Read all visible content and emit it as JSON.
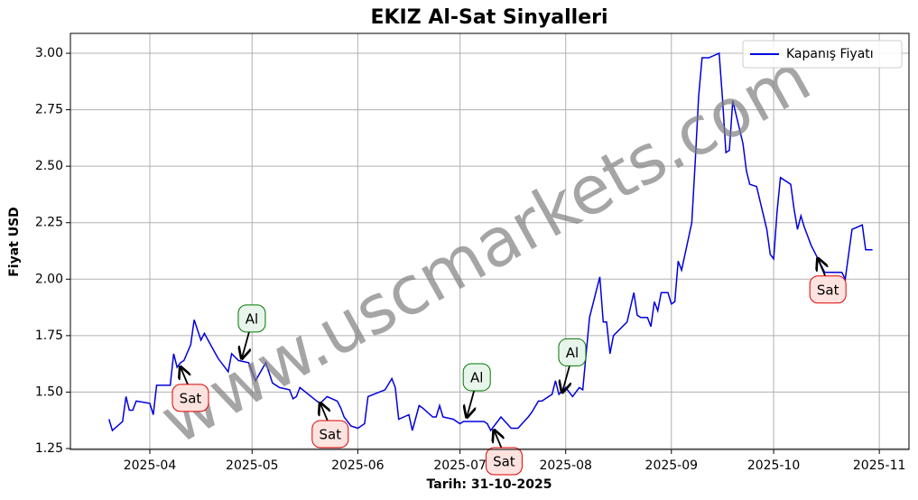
{
  "chart_data": {
    "type": "line",
    "title": "EKIZ Al-Sat Sinyalleri",
    "xlabel": "Tarih: 31-10-2025",
    "ylabel": "Fiyat USD",
    "watermark": "www.uscmarkets.com",
    "legend": "upper right",
    "grid": true,
    "xlim": [
      -23.3,
      222.7
    ],
    "ylim": [
      1.246,
      3.088
    ],
    "xticks": [
      {
        "value": 0,
        "label": "2025-04"
      },
      {
        "value": 30,
        "label": "2025-05"
      },
      {
        "value": 61,
        "label": "2025-06"
      },
      {
        "value": 91,
        "label": "2025-07"
      },
      {
        "value": 122,
        "label": "2025-08"
      },
      {
        "value": 153,
        "label": "2025-09"
      },
      {
        "value": 183,
        "label": "2025-10"
      },
      {
        "value": 214,
        "label": "2025-11"
      }
    ],
    "yticks": [
      1.25,
      {
        "value": 1.5,
        "label": "1.50"
      },
      1.75,
      {
        "value": 2,
        "label": "2.00"
      },
      2.25,
      {
        "value": 2.5,
        "label": "2.50"
      },
      2.75,
      {
        "value": 3,
        "label": "3.00"
      }
    ],
    "x": [
      -12,
      -11,
      -8,
      -7,
      -6,
      -5,
      -4,
      0,
      1,
      2,
      6,
      7,
      8,
      9,
      10,
      12,
      13,
      15,
      16,
      20,
      23,
      24,
      26,
      29,
      31,
      34,
      36,
      38,
      41,
      42,
      43,
      44,
      49,
      50,
      52,
      55,
      56,
      57,
      59,
      61,
      63,
      64,
      69,
      71,
      72,
      73,
      76,
      77,
      79,
      80,
      83,
      84,
      85,
      86,
      89,
      91,
      92,
      94,
      98,
      99,
      100,
      103,
      106,
      108,
      111,
      112,
      114,
      115,
      118,
      119,
      120,
      122,
      124,
      126,
      127,
      129,
      132,
      133,
      134,
      135,
      136,
      140,
      142,
      143,
      144,
      146,
      147,
      148,
      149,
      150,
      152,
      153,
      154,
      155,
      156,
      159,
      160,
      161,
      162,
      164,
      167,
      168,
      169,
      170,
      171,
      174,
      175,
      176,
      178,
      181,
      182,
      183,
      184,
      185,
      188,
      189,
      190,
      191,
      192,
      194,
      196,
      198,
      201,
      203,
      204,
      206,
      209,
      210,
      212
    ],
    "series": [
      {
        "name": "Kapanış Fiyatı",
        "color": "#0000dd",
        "values": [
          1.38,
          1.33,
          1.37,
          1.48,
          1.42,
          1.42,
          1.46,
          1.45,
          1.4,
          1.53,
          1.53,
          1.67,
          1.61,
          1.63,
          1.64,
          1.71,
          1.82,
          1.73,
          1.76,
          1.65,
          1.59,
          1.67,
          1.64,
          1.63,
          1.55,
          1.63,
          1.54,
          1.52,
          1.51,
          1.47,
          1.48,
          1.52,
          1.46,
          1.45,
          1.48,
          1.46,
          1.43,
          1.39,
          1.35,
          1.34,
          1.36,
          1.48,
          1.51,
          1.56,
          1.52,
          1.38,
          1.4,
          1.33,
          1.44,
          1.43,
          1.39,
          1.39,
          1.44,
          1.39,
          1.38,
          1.36,
          1.37,
          1.37,
          1.37,
          1.36,
          1.33,
          1.39,
          1.34,
          1.34,
          1.39,
          1.41,
          1.46,
          1.46,
          1.49,
          1.55,
          1.49,
          1.52,
          1.48,
          1.52,
          1.51,
          1.83,
          2.01,
          1.81,
          1.81,
          1.67,
          1.75,
          1.81,
          1.94,
          1.84,
          1.83,
          1.83,
          1.79,
          1.9,
          1.86,
          1.94,
          1.94,
          1.89,
          1.9,
          2.08,
          2.04,
          2.25,
          2.52,
          2.81,
          2.98,
          2.98,
          3.0,
          2.8,
          2.56,
          2.57,
          2.79,
          2.6,
          2.48,
          2.42,
          2.41,
          2.22,
          2.11,
          2.09,
          2.3,
          2.45,
          2.42,
          2.31,
          2.22,
          2.28,
          2.23,
          2.15,
          2.09,
          2.03,
          2.03,
          2.03,
          2.0,
          2.22,
          2.24,
          2.13,
          2.13
        ]
      }
    ],
    "annotations": [
      {
        "text": "Sat",
        "x": 9,
        "y": 1.61
      },
      {
        "text": "Al",
        "x": 27,
        "y": 1.65
      },
      {
        "text": "Sat",
        "x": 50,
        "y": 1.45
      },
      {
        "text": "Al",
        "x": 93,
        "y": 1.39
      },
      {
        "text": "Sat",
        "x": 101,
        "y": 1.33
      },
      {
        "text": "Al",
        "x": 121,
        "y": 1.5
      },
      {
        "text": "Sat",
        "x": 196,
        "y": 2.09
      }
    ]
  }
}
